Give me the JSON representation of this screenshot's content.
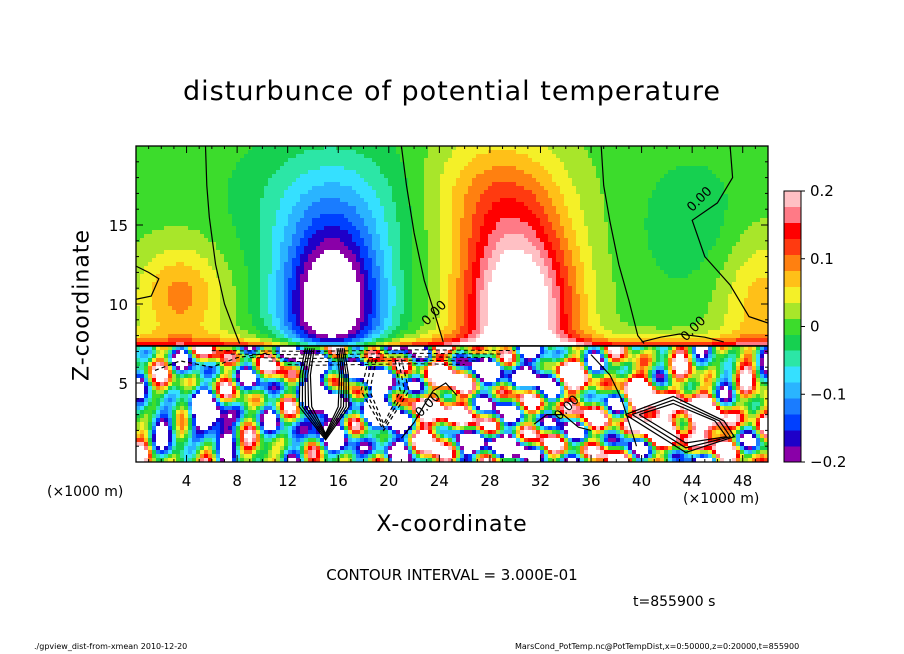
{
  "chart_data": {
    "type": "heatmap",
    "title": "disturbunce of potential temperature",
    "xlabel": "X-coordinate",
    "ylabel": "Z-coordinate",
    "x_unit_left": "(×1000 m)",
    "x_unit_right": "(×1000 m)",
    "xlim": [
      0,
      50
    ],
    "ylim": [
      0,
      20
    ],
    "x_ticks": [
      4,
      8,
      12,
      16,
      20,
      24,
      28,
      32,
      36,
      40,
      44,
      48
    ],
    "x_tick_labels": [
      "4",
      "8",
      "12",
      "16",
      "20",
      "24",
      "28",
      "32",
      "36",
      "40",
      "44",
      "48"
    ],
    "y_ticks": [
      5,
      10,
      15
    ],
    "y_tick_labels": [
      "5",
      "10",
      "15"
    ],
    "colorbar": {
      "range": [
        -0.2,
        0.2
      ],
      "ticks": [
        0.2,
        0.1,
        0,
        -0.1,
        -0.2
      ],
      "tick_labels": [
        "0.2",
        "0.1",
        "0",
        "−0.1",
        "−0.2"
      ],
      "colors": [
        "#8a00a8",
        "#1e00c8",
        "#0040ff",
        "#1a7cff",
        "#2ab4ff",
        "#35e0ff",
        "#2ce6a6",
        "#16d050",
        "#3cdc2c",
        "#a8e62a",
        "#f4f028",
        "#ffc018",
        "#ff8010",
        "#ff3a10",
        "#ff0000",
        "#ff7a86",
        "#ffc0c4"
      ],
      "over_color": "#ffffff",
      "under_color": "#ffffff"
    },
    "contour_labels": [
      {
        "text": "0.00",
        "x": 44.0,
        "y": 15.8
      },
      {
        "text": "0.00",
        "x": 23.0,
        "y": 8.6
      },
      {
        "text": "0.00",
        "x": 43.5,
        "y": 7.6
      },
      {
        "text": "0.00",
        "x": 22.5,
        "y": 2.8
      },
      {
        "text": "0.00",
        "x": 33.5,
        "y": 2.6
      }
    ],
    "features": [
      {
        "kind": "cold anomaly",
        "center_x": 15,
        "center_z": 11,
        "peak": -0.2
      },
      {
        "kind": "warm anomaly",
        "center_x": 30,
        "center_z": 10,
        "peak": 0.2
      }
    ]
  },
  "contour_interval": "CONTOUR INTERVAL = 3.000E-01",
  "time_label": "t=855900 s",
  "footer_left": "./gpview_dist-from-xmean  2010-12-20",
  "footer_right": "MarsCond_PotTemp.nc@PotTempDist,x=0:50000,z=0:20000,t=855900"
}
